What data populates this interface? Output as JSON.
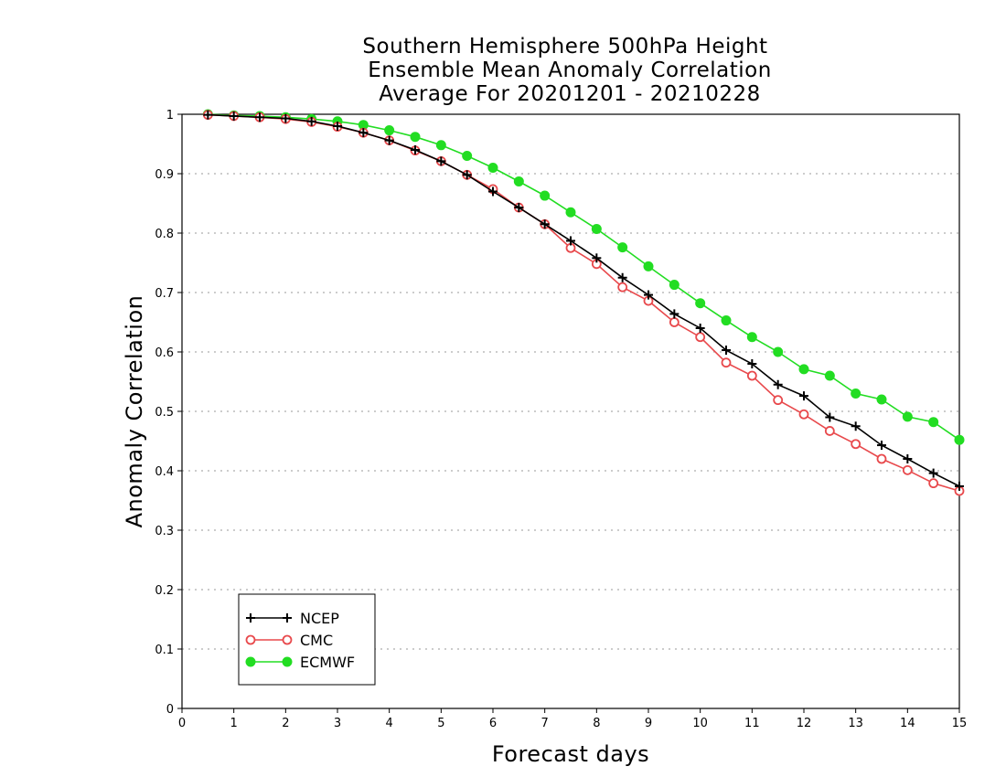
{
  "chart_data": {
    "type": "line",
    "title_lines": [
      "Southern Hemisphere 500hPa Height",
      "Ensemble Mean Anomaly Correlation",
      "Average For 20201201 - 20210228"
    ],
    "xlabel": "Forecast days",
    "ylabel": "Anomaly Correlation",
    "xlim": [
      0,
      15
    ],
    "ylim": [
      0,
      1
    ],
    "xticks": [
      "0",
      "1",
      "2",
      "3",
      "4",
      "5",
      "6",
      "7",
      "8",
      "9",
      "10",
      "11",
      "12",
      "13",
      "14",
      "15"
    ],
    "yticks": [
      "0",
      "0.1",
      "0.2",
      "0.3",
      "0.4",
      "0.5",
      "0.6",
      "0.7",
      "0.8",
      "0.9",
      "1"
    ],
    "grid": "horizontal dotted",
    "legend_position": "bottom-left",
    "x": [
      0.5,
      1,
      1.5,
      2,
      2.5,
      3,
      3.5,
      4,
      4.5,
      5,
      5.5,
      6,
      6.5,
      7,
      7.5,
      8,
      8.5,
      9,
      9.5,
      10,
      10.5,
      11,
      11.5,
      12,
      12.5,
      13,
      13.5,
      14,
      14.5,
      15
    ],
    "series": [
      {
        "name": "NCEP",
        "color": "#000000",
        "marker": "plus",
        "values": [
          0.999,
          0.997,
          0.995,
          0.993,
          0.988,
          0.98,
          0.969,
          0.956,
          0.94,
          0.921,
          0.898,
          0.87,
          0.843,
          0.815,
          0.787,
          0.758,
          0.725,
          0.696,
          0.664,
          0.64,
          0.603,
          0.58,
          0.545,
          0.526,
          0.49,
          0.475,
          0.443,
          0.42,
          0.396,
          0.374
        ]
      },
      {
        "name": "CMC",
        "color": "#e8494c",
        "marker": "open-circle",
        "values": [
          0.999,
          0.997,
          0.995,
          0.992,
          0.987,
          0.979,
          0.969,
          0.956,
          0.939,
          0.921,
          0.898,
          0.874,
          0.843,
          0.815,
          0.775,
          0.748,
          0.709,
          0.686,
          0.65,
          0.625,
          0.582,
          0.56,
          0.519,
          0.495,
          0.467,
          0.445,
          0.42,
          0.401,
          0.379,
          0.366
        ]
      },
      {
        "name": "ECMWF",
        "color": "#22dd22",
        "marker": "filled-circle",
        "values": [
          1.0,
          0.998,
          0.997,
          0.995,
          0.992,
          0.988,
          0.982,
          0.973,
          0.962,
          0.948,
          0.93,
          0.91,
          0.887,
          0.863,
          0.835,
          0.807,
          0.776,
          0.744,
          0.713,
          0.682,
          0.653,
          0.625,
          0.6,
          0.571,
          0.56,
          0.53,
          0.52,
          0.491,
          0.482,
          0.452
        ]
      }
    ]
  }
}
